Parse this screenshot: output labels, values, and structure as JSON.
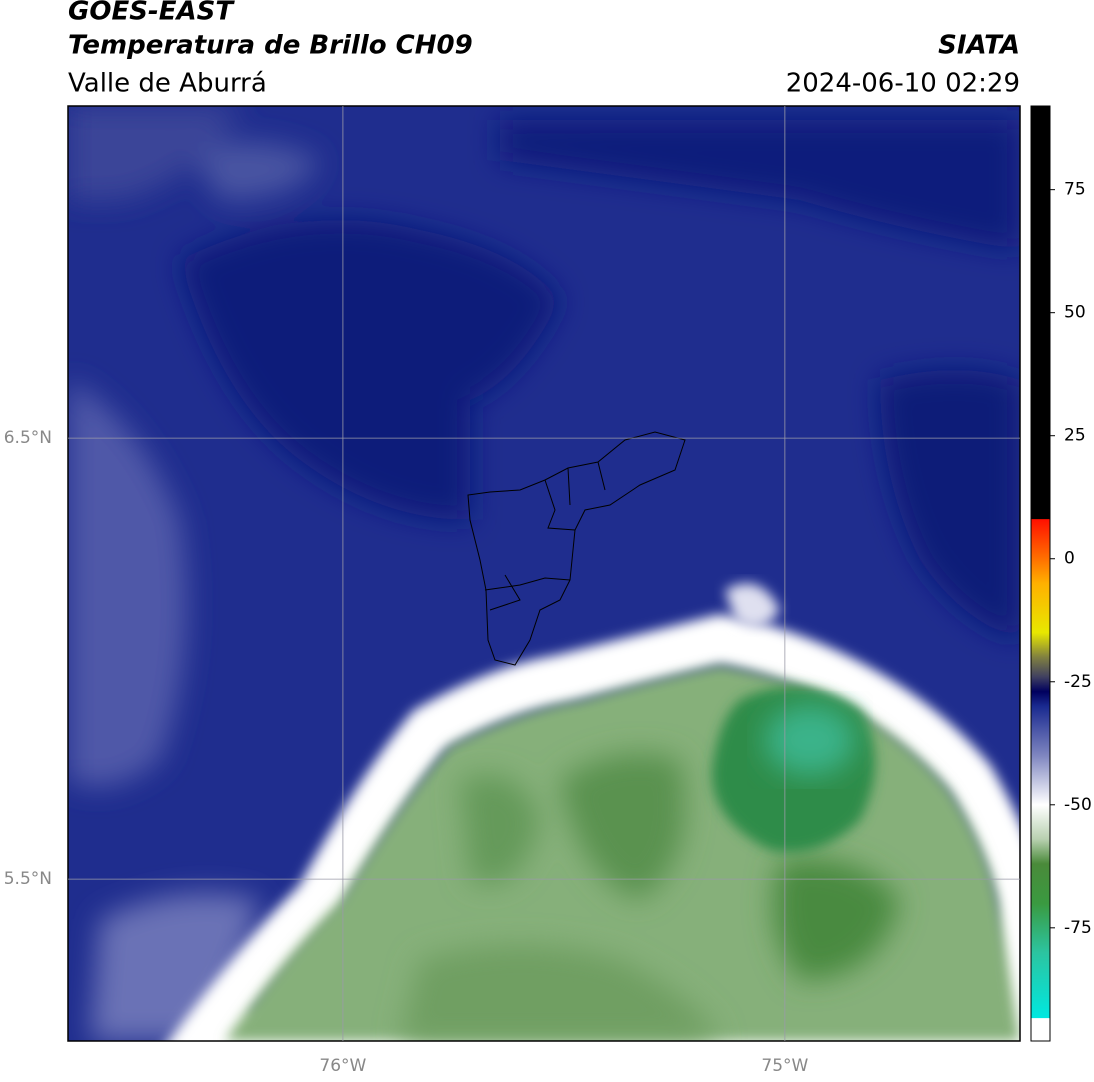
{
  "header": {
    "title": "GOES-EAST",
    "subtitle": "Temperatura de Brillo CH09",
    "region": "Valle de Aburrá",
    "source": "SIATA",
    "datetime": "2024-06-10 02:29"
  },
  "map": {
    "xlim": [
      -76.622,
      -74.468
    ],
    "ylim": [
      5.133,
      7.253
    ],
    "xticks": [
      {
        "value": -76,
        "label": "76°W"
      },
      {
        "value": -75,
        "label": "75°W"
      }
    ],
    "yticks": [
      {
        "value": 6.5,
        "label": "6.5°N"
      },
      {
        "value": 5.5,
        "label": "5.5°N"
      }
    ],
    "grid": true
  },
  "colorbar": {
    "lim": [
      -98,
      92
    ],
    "ticks": [
      75,
      50,
      25,
      0,
      -25,
      -50,
      -75
    ],
    "stops": [
      {
        "value": -98,
        "color": "#ffffff"
      },
      {
        "value": -93.4,
        "color": "#ffffff"
      },
      {
        "value": -93.3,
        "color": "#00e8e0"
      },
      {
        "value": -80,
        "color": "#2cc4a0"
      },
      {
        "value": -70,
        "color": "#3a9a40"
      },
      {
        "value": -62,
        "color": "#4a8a3a"
      },
      {
        "value": -57,
        "color": "#b8d0b0"
      },
      {
        "value": -50,
        "color": "#ffffff"
      },
      {
        "value": -40,
        "color": "#7f86c0"
      },
      {
        "value": -30,
        "color": "#1a2a90"
      },
      {
        "value": -27,
        "color": "#00005e"
      },
      {
        "value": -24,
        "color": "#404060"
      },
      {
        "value": -20,
        "color": "#808040"
      },
      {
        "value": -15,
        "color": "#e8e800"
      },
      {
        "value": -5,
        "color": "#ffb000"
      },
      {
        "value": 0,
        "color": "#ff7000"
      },
      {
        "value": 8,
        "color": "#ff1000"
      },
      {
        "value": 8.1,
        "color": "#000000"
      },
      {
        "value": 92,
        "color": "#000000"
      }
    ]
  }
}
